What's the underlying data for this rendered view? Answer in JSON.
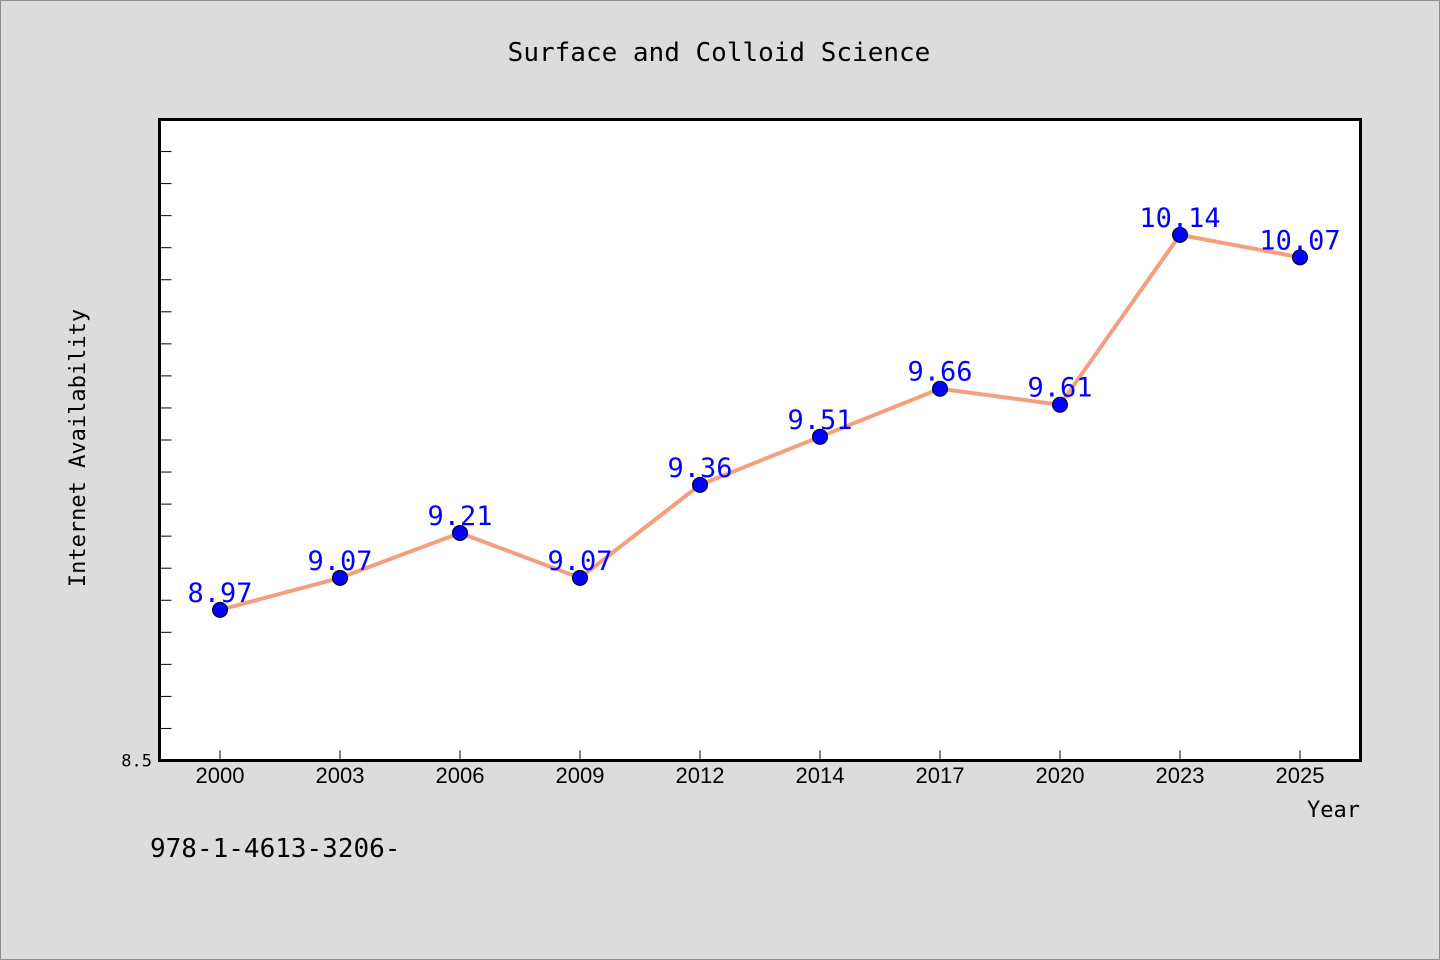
{
  "footer": {
    "isbn": "978-1-4613-3206-"
  },
  "colors": {
    "background": "#dcdcdc",
    "plot_background": "#ffffff",
    "line": "#f4a07e",
    "marker": "#0000ff",
    "data_label": "#0000ff"
  },
  "chart_data": {
    "type": "line",
    "title": "Surface and Colloid Science",
    "xlabel": "Year",
    "ylabel": "Internet Availability",
    "categories": [
      "2000",
      "2003",
      "2006",
      "2009",
      "2012",
      "2014",
      "2017",
      "2020",
      "2023",
      "2025"
    ],
    "values": [
      8.97,
      9.07,
      9.21,
      9.07,
      9.36,
      9.51,
      9.66,
      9.61,
      10.14,
      10.07
    ],
    "data_labels": [
      "8.97",
      "9.07",
      "9.21",
      "9.07",
      "9.36",
      "9.51",
      "9.66",
      "9.61",
      "10.14",
      "10.07"
    ],
    "ylim": [
      8.5,
      10.5
    ],
    "y_tick_labels": [
      {
        "value": 8.5,
        "label": "8.5"
      }
    ],
    "y_minor_step": 0.1,
    "grid": false,
    "legend": "none"
  }
}
